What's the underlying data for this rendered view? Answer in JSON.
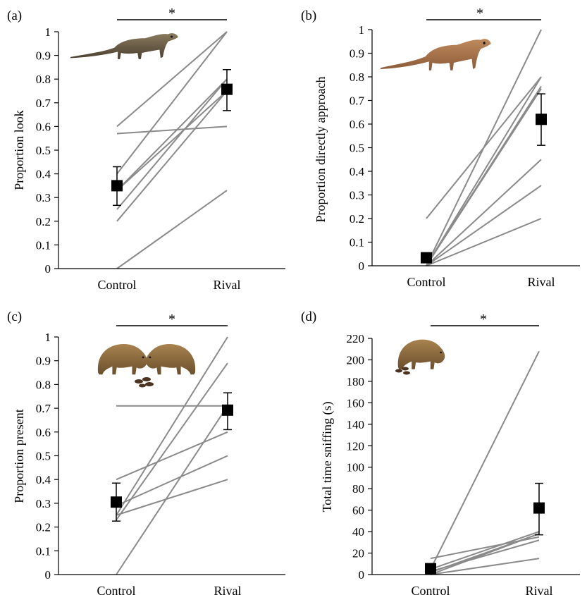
{
  "colors": {
    "individual_line": "#8a8a8a",
    "mean_marker": "#000000",
    "axis": "#000000"
  },
  "chart_data": [
    {
      "type": "line",
      "panel_label": "(a)",
      "ylabel": "Proportion look",
      "categories": [
        "Control",
        "Rival"
      ],
      "ylim": [
        0,
        1
      ],
      "yticks": [
        0,
        0.1,
        0.2,
        0.3,
        0.4,
        0.5,
        0.6,
        0.7,
        0.8,
        0.9,
        1
      ],
      "ytick_labels": [
        "0",
        "0.1",
        "0.2",
        "0.3",
        "0.4",
        "0.5",
        "0.6",
        "0.7",
        "0.8",
        "0.9",
        "1"
      ],
      "individual_lines": [
        [
          0.6,
          1.0
        ],
        [
          0.57,
          0.6
        ],
        [
          0.4,
          1.0
        ],
        [
          0.33,
          0.8
        ],
        [
          0.33,
          0.75
        ],
        [
          0.25,
          0.8
        ],
        [
          0.2,
          0.75
        ],
        [
          0.0,
          0.33
        ]
      ],
      "mean": [
        0.35,
        0.757
      ],
      "error": [
        [
          0.267,
          0.43
        ],
        [
          0.667,
          0.84
        ]
      ],
      "significance": "*",
      "illustration": "mongoose-standing"
    },
    {
      "type": "line",
      "panel_label": "(b)",
      "ylabel": "Proportion directly approach",
      "categories": [
        "Control",
        "Rival"
      ],
      "ylim": [
        0,
        1
      ],
      "yticks": [
        0,
        0.1,
        0.2,
        0.3,
        0.4,
        0.5,
        0.6,
        0.7,
        0.8,
        0.9,
        1
      ],
      "ytick_labels": [
        "0",
        "0.1",
        "0.2",
        "0.3",
        "0.4",
        "0.5",
        "0.6",
        "0.7",
        "0.8",
        "0.9",
        "1"
      ],
      "individual_lines": [
        [
          0.2,
          0.8
        ],
        [
          0.0,
          1.0
        ],
        [
          0.0,
          0.8
        ],
        [
          0.0,
          0.75
        ],
        [
          0.0,
          0.45
        ],
        [
          0.0,
          0.34
        ],
        [
          0.0,
          0.2
        ],
        [
          0.0,
          0.76
        ]
      ],
      "mean": [
        0.034,
        0.62
      ],
      "error": [
        [
          0.015,
          0.05
        ],
        [
          0.51,
          0.728
        ]
      ],
      "significance": "*",
      "illustration": "mongoose-walking"
    },
    {
      "type": "line",
      "panel_label": "(c)",
      "ylabel": "Proportion present",
      "categories": [
        "Control",
        "Rival"
      ],
      "ylim": [
        0,
        1
      ],
      "yticks": [
        0,
        0.1,
        0.2,
        0.3,
        0.4,
        0.5,
        0.6,
        0.7,
        0.8,
        0.9,
        1
      ],
      "ytick_labels": [
        "0",
        "0.1",
        "0.2",
        "0.3",
        "0.4",
        "0.5",
        "0.6",
        "0.7",
        "0.8",
        "0.9",
        "1"
      ],
      "individual_lines": [
        [
          0.71,
          0.71
        ],
        [
          0.4,
          0.6
        ],
        [
          0.29,
          0.5
        ],
        [
          0.25,
          1.0
        ],
        [
          0.25,
          0.4
        ],
        [
          0.23,
          0.89
        ],
        [
          0.0,
          0.71
        ]
      ],
      "mean": [
        0.305,
        0.692
      ],
      "error": [
        [
          0.225,
          0.385
        ],
        [
          0.61,
          0.765
        ]
      ],
      "significance": "*",
      "illustration": "two-mongooses-sniffing-scat"
    },
    {
      "type": "line",
      "panel_label": "(d)",
      "ylabel": "Total time sniffing (s)",
      "categories": [
        "Control",
        "Rival"
      ],
      "ylim": [
        0,
        220
      ],
      "yticks": [
        0,
        20,
        40,
        60,
        80,
        100,
        120,
        140,
        160,
        180,
        200,
        220
      ],
      "ytick_labels": [
        "0",
        "20",
        "40",
        "60",
        "80",
        "100",
        "120",
        "140",
        "160",
        "180",
        "200",
        "220"
      ],
      "individual_lines": [
        [
          15,
          35
        ],
        [
          5,
          208
        ],
        [
          5,
          40
        ],
        [
          3,
          32
        ],
        [
          2,
          38
        ],
        [
          0,
          15
        ],
        [
          0,
          38
        ]
      ],
      "mean": [
        5.5,
        62
      ],
      "error": [
        [
          2.5,
          8.5
        ],
        [
          37,
          85
        ]
      ],
      "significance": "*",
      "illustration": "mongoose-sniffing-scat"
    }
  ]
}
